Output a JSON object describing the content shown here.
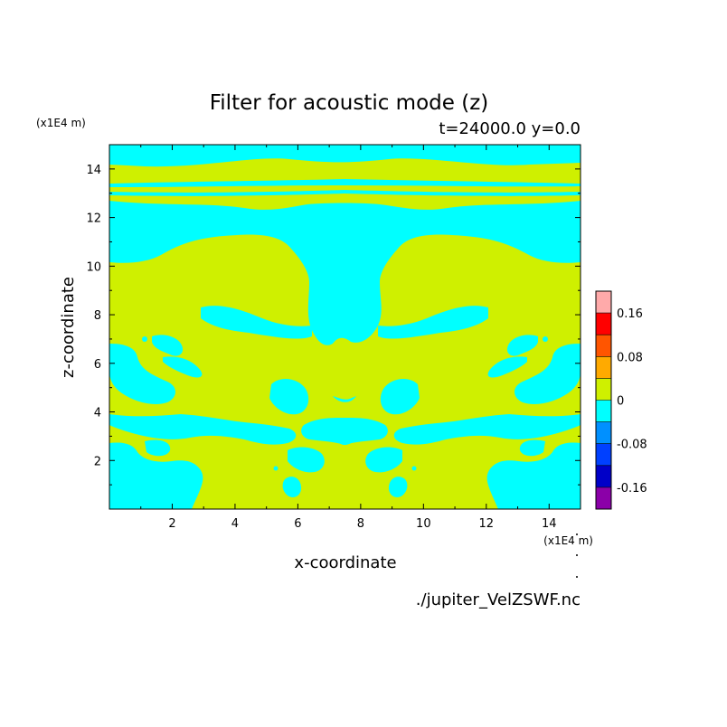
{
  "chart_data": {
    "type": "heatmap",
    "title": "Filter for acoustic mode (z)",
    "subtitle": "t=24000.0 y=0.0",
    "xlabel": "x-coordinate",
    "ylabel": "z-coordinate",
    "x_unit": "(x1E4 m)",
    "y_unit": "(x1E4 m)",
    "xlim": [
      0.0,
      15.0
    ],
    "ylim": [
      0.0,
      15.0
    ],
    "x_ticks": [
      "2",
      "4",
      "6",
      "8",
      "10",
      "12",
      "14"
    ],
    "y_ticks": [
      "2",
      "4",
      "6",
      "8",
      "10",
      "12",
      "14"
    ],
    "footer": "./jupiter_VelZSWF.nc",
    "colorbar": {
      "levels": [
        -0.2,
        -0.16,
        -0.12,
        -0.08,
        -0.04,
        0.0,
        0.04,
        0.08,
        0.12,
        0.16,
        0.2
      ],
      "colors": [
        "#8b00a8",
        "#0000c8",
        "#0040ff",
        "#0090ff",
        "#00ffff",
        "#cff000",
        "#ffaa00",
        "#ff5500",
        "#ff0000",
        "#ffaaaa"
      ],
      "tick_labels": [
        "0.16",
        "0.08",
        "0",
        "-0.08",
        "-0.16"
      ]
    },
    "positive_color": "#cff000",
    "negative_color": "#00ffff"
  }
}
